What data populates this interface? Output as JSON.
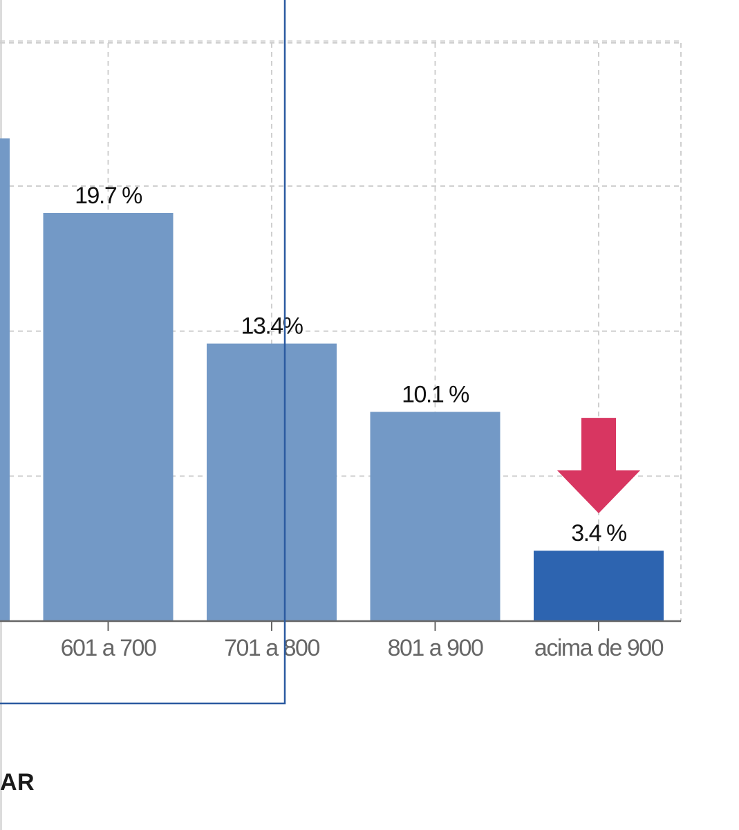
{
  "chart_data": {
    "type": "bar",
    "categories": [
      "",
      "601 a 700",
      "701 a 800",
      "801 a 900",
      "acima de 900"
    ],
    "values": [
      23.3,
      19.7,
      13.4,
      10.1,
      3.4
    ],
    "value_labels": [
      "",
      "19.7 %",
      "13.4%",
      "10.1 %",
      "3.4 %"
    ],
    "ylim": [
      0,
      28
    ],
    "grid": true,
    "highlight_index": 4,
    "colors": {
      "bar": "#7399c6",
      "highlight_bar": "#2d64b0",
      "arrow": "#d83661",
      "grid": "#cfcfcf",
      "axis": "#666666",
      "tick_label": "#666666",
      "value_label": "#111111",
      "overlay_frame": "#2b5aa0"
    }
  },
  "footer": {
    "cropped_text": "AR"
  }
}
